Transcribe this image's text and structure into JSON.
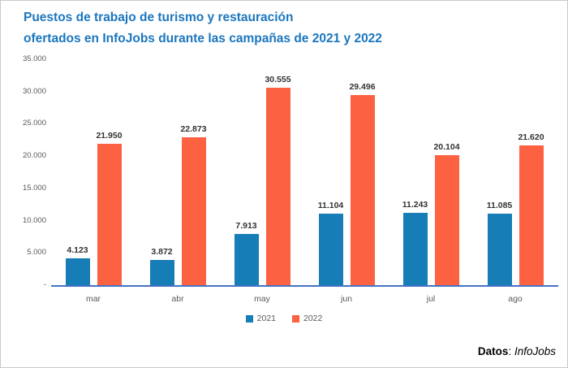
{
  "title": {
    "line1": "Puestos de trabajo de turismo y restauración",
    "line2": "ofertados en InfoJobs durante las campañas de 2021 y 2022"
  },
  "source": {
    "label": "Datos",
    "separator": ": ",
    "value": "InfoJobs"
  },
  "colors": {
    "series2021": "#177DB6",
    "series2022": "#FC6142",
    "title_text": "#1B76BE",
    "axis_line": "#4472C4",
    "tick_text": "#595959",
    "value_label_text": "#333333"
  },
  "chart_data": {
    "type": "bar",
    "title": "Puestos de trabajo de turismo y restauración ofertados en InfoJobs durante las campañas de 2021 y 2022",
    "categories": [
      "mar",
      "abr",
      "may",
      "jun",
      "jul",
      "ago"
    ],
    "series": [
      {
        "name": "2021",
        "color_key": "series2021",
        "values": [
          4123,
          3872,
          7913,
          11104,
          11243,
          11085
        ],
        "labels": [
          "4.123",
          "3.872",
          "7.913",
          "11.104",
          "11.243",
          "11.085"
        ]
      },
      {
        "name": "2022",
        "color_key": "series2022",
        "values": [
          21950,
          22873,
          30555,
          29496,
          20104,
          21620
        ],
        "labels": [
          "21.950",
          "22.873",
          "30.555",
          "29.496",
          "20.104",
          "21.620"
        ]
      }
    ],
    "xlabel": "",
    "ylabel": "",
    "ylim": [
      0,
      35000
    ],
    "yticks": [
      {
        "value": 35000,
        "label": "35.000"
      },
      {
        "value": 30000,
        "label": "30.000"
      },
      {
        "value": 25000,
        "label": "25.000"
      },
      {
        "value": 20000,
        "label": "20.000"
      },
      {
        "value": 15000,
        "label": "15.000"
      },
      {
        "value": 10000,
        "label": "10.000"
      },
      {
        "value": 5000,
        "label": "5.000"
      },
      {
        "value": 0,
        "label": "-"
      }
    ],
    "grid": false,
    "legend_position": "bottom-center"
  }
}
